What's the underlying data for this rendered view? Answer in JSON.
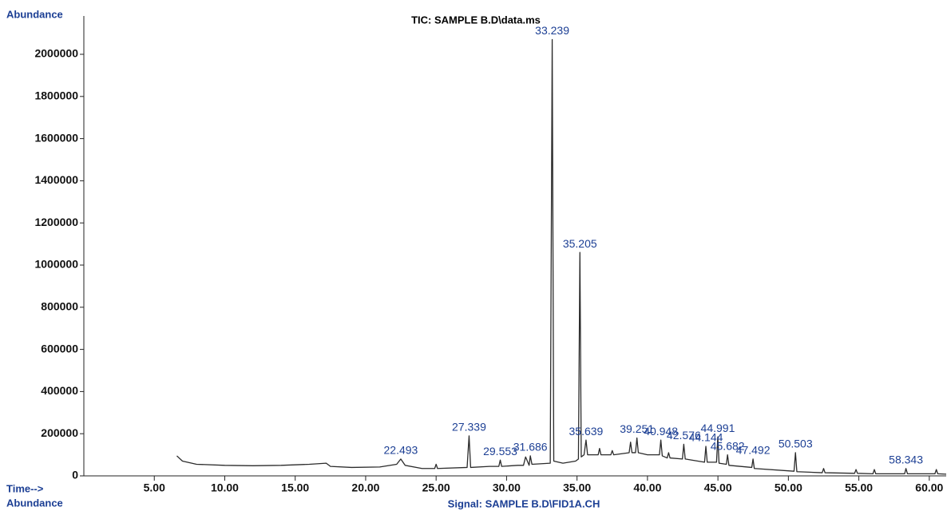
{
  "chart_data": {
    "type": "line",
    "title": "TIC: SAMPLE B.D\\data.ms",
    "y_label": "Abundance",
    "x_label": "Time-->",
    "x_label_2": "Abundance",
    "signal_label": "Signal: SAMPLE B.D\\FID1A.CH",
    "xlim": [
      0,
      61.2
    ],
    "ylim": [
      0,
      2000000
    ],
    "xticks": [
      {
        "value": 5,
        "label": "5.00"
      },
      {
        "value": 10,
        "label": "10.00"
      },
      {
        "value": 15,
        "label": "15.00"
      },
      {
        "value": 20,
        "label": "20.00"
      },
      {
        "value": 25,
        "label": "25.00"
      },
      {
        "value": 30,
        "label": "30.00"
      },
      {
        "value": 35,
        "label": "35.00"
      },
      {
        "value": 40,
        "label": "40.00"
      },
      {
        "value": 45,
        "label": "45.00"
      },
      {
        "value": 50,
        "label": "50.00"
      },
      {
        "value": 55,
        "label": "55.00"
      },
      {
        "value": 60,
        "label": "60.00"
      }
    ],
    "yticks": [
      0,
      200000,
      400000,
      600000,
      800000,
      1000000,
      1200000,
      1400000,
      1600000,
      1800000,
      2000000
    ],
    "series": [
      {
        "color": "#2b2b2b",
        "x": [
          6.6,
          7.0,
          8.0,
          10.0,
          12.0,
          14.0,
          16.0,
          17.2,
          17.5,
          19.0,
          21.0,
          22.2,
          22.493,
          22.8,
          24.0,
          24.9,
          25.0,
          25.1,
          27.2,
          27.339,
          27.45,
          28.8,
          29.45,
          29.553,
          29.65,
          30.8,
          31.2,
          31.35,
          31.6,
          31.686,
          31.8,
          33.1,
          33.239,
          33.35,
          34.0,
          34.9,
          35.1,
          35.205,
          35.3,
          35.5,
          35.639,
          35.75,
          36.5,
          36.6,
          36.7,
          37.4,
          37.5,
          37.6,
          38.7,
          38.8,
          38.9,
          39.15,
          39.251,
          39.35,
          40.0,
          40.85,
          40.948,
          41.05,
          41.4,
          41.5,
          41.6,
          42.48,
          42.576,
          42.68,
          44.05,
          44.144,
          44.24,
          44.9,
          44.991,
          45.08,
          45.6,
          45.682,
          45.78,
          47.4,
          47.492,
          47.58,
          50.4,
          50.503,
          50.6,
          52.4,
          52.5,
          52.6,
          54.7,
          54.8,
          54.9,
          56.0,
          56.1,
          56.2,
          58.25,
          58.343,
          58.45,
          60.4,
          60.5,
          60.6,
          61.2
        ],
        "values": [
          95000,
          70000,
          55000,
          50000,
          48000,
          50000,
          55000,
          60000,
          45000,
          40000,
          42000,
          55000,
          80000,
          50000,
          35000,
          35000,
          55000,
          35000,
          40000,
          190000,
          40000,
          45000,
          45000,
          75000,
          45000,
          50000,
          50000,
          90000,
          50000,
          95000,
          55000,
          60000,
          2070000,
          70000,
          60000,
          70000,
          80000,
          1060000,
          90000,
          100000,
          170000,
          100000,
          100000,
          130000,
          100000,
          100000,
          120000,
          100000,
          110000,
          160000,
          110000,
          110000,
          180000,
          110000,
          100000,
          100000,
          170000,
          95000,
          85000,
          110000,
          85000,
          80000,
          150000,
          80000,
          65000,
          140000,
          65000,
          65000,
          185000,
          60000,
          55000,
          100000,
          50000,
          40000,
          80000,
          35000,
          22000,
          110000,
          20000,
          15000,
          35000,
          15000,
          12000,
          30000,
          12000,
          10000,
          30000,
          10000,
          10000,
          35000,
          10000,
          10000,
          30000,
          10000,
          8000
        ]
      }
    ],
    "peak_labels": [
      22.493,
      27.339,
      29.553,
      31.686,
      33.239,
      35.205,
      35.639,
      39.251,
      40.948,
      42.576,
      44.144,
      44.991,
      45.682,
      47.492,
      50.503,
      58.343
    ]
  }
}
